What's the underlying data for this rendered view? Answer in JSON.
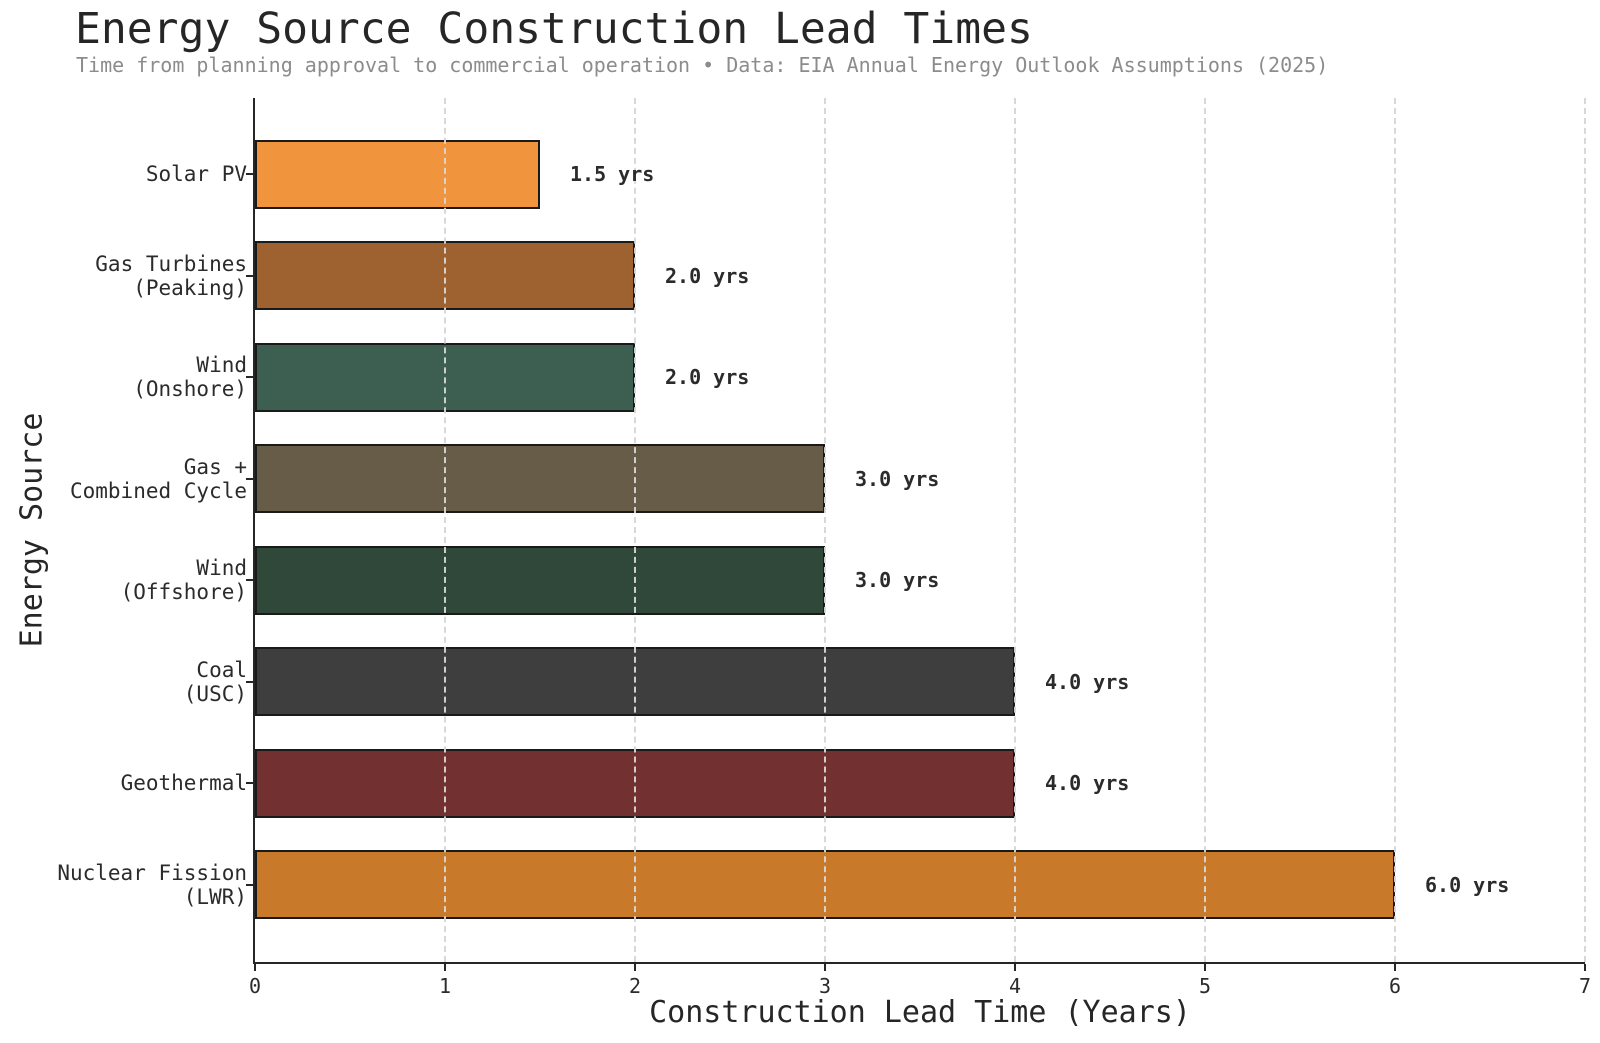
{
  "header": {
    "title": "Energy Source Construction Lead Times",
    "subtitle": "Time from planning approval to commercial operation • Data: EIA Annual Energy Outlook Assumptions (2025)"
  },
  "chart_data": {
    "type": "bar",
    "orientation": "horizontal",
    "title": "Energy Source Construction Lead Times",
    "subtitle": "Time from planning approval to commercial operation • Data: EIA Annual Energy Outlook Assumptions (2025)",
    "xlabel": "Construction Lead Time (Years)",
    "ylabel": "Energy Source",
    "xlim": [
      0,
      7
    ],
    "xticks": [
      "0",
      "1",
      "2",
      "3",
      "4",
      "5",
      "6",
      "7"
    ],
    "grid": "vertical dashed light-gray gridlines drawn above bars",
    "legend": "none",
    "categories": [
      "Solar PV",
      "Gas Turbines\n(Peaking)",
      "Wind\n(Onshore)",
      "Gas +\nCombined Cycle",
      "Wind\n(Offshore)",
      "Coal\n(USC)",
      "Geothermal",
      "Nuclear Fission\n(LWR)"
    ],
    "values": [
      1.5,
      2.0,
      2.0,
      3.0,
      3.0,
      4.0,
      4.0,
      6.0
    ],
    "bar_labels": [
      "1.5 yrs",
      "2.0 yrs",
      "2.0 yrs",
      "3.0 yrs",
      "3.0 yrs",
      "4.0 yrs",
      "4.0 yrs",
      "6.0 yrs"
    ],
    "bar_colors": [
      "#F0943D",
      "#9E6231",
      "#3D5F52",
      "#665C48",
      "#2F4839",
      "#3E3E3E",
      "#733031",
      "#C8792A"
    ],
    "bar_edge_color": "#1a1a1a",
    "axis_color": "#262626"
  }
}
